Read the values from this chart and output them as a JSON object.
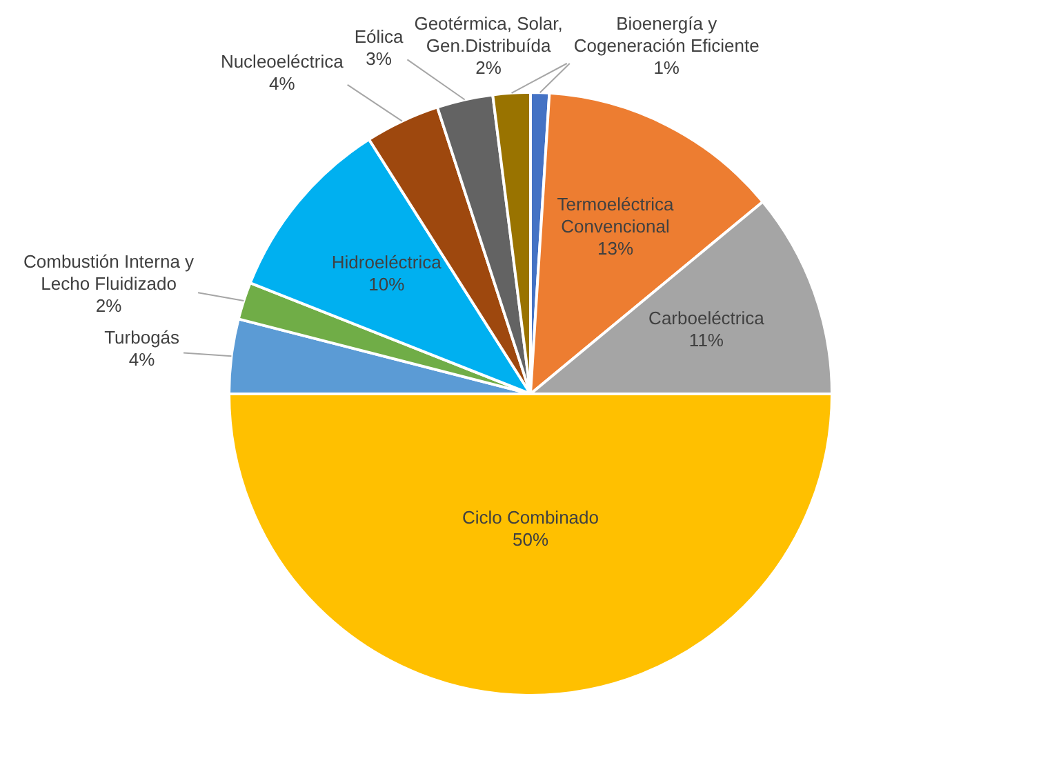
{
  "chart_data": {
    "type": "pie",
    "categories": [
      "Bioenergía y Cogeneración Eficiente",
      "Termoeléctrica Convencional",
      "Carboeléctrica",
      "Ciclo Combinado",
      "Turbogás",
      "Combustión Interna y Lecho Fluidizado",
      "Hidroeléctrica",
      "Nucleoeléctrica",
      "Eólica",
      "Geotérmica, Solar, Gen.Distribuída"
    ],
    "values": [
      1,
      13,
      11,
      50,
      4,
      2,
      10,
      4,
      3,
      2
    ],
    "value_labels": [
      "1%",
      "13%",
      "11%",
      "50%",
      "4%",
      "2%",
      "10%",
      "4%",
      "3%",
      "2%"
    ],
    "colors": [
      "#4472c4",
      "#ed7d31",
      "#a5a5a5",
      "#ffc000",
      "#5b9bd5",
      "#70ad47",
      "#00b0f0",
      "#9e480e",
      "#636363",
      "#997300"
    ],
    "legend": false
  }
}
